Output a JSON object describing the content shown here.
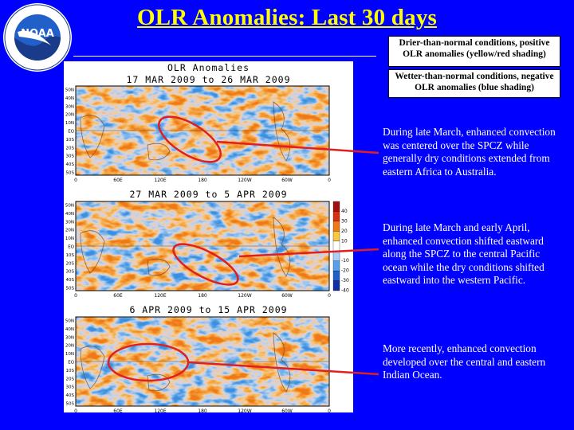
{
  "logo": {
    "emblem_text": "NOAA",
    "ring_text": "NATIONAL OCEANIC AND ATMOSPHERIC ADMINISTRATION · U.S. DEPARTMENT OF COMMERCE"
  },
  "title": "OLR Anomalies: Last 30 days",
  "legend": {
    "dry": "Drier-than-normal conditions, positive OLR anomalies (yellow/red shading)",
    "wet": "Wetter-than-normal conditions, negative OLR anomalies (blue shading)"
  },
  "figure": {
    "header": "OLR Anomalies",
    "panels": [
      {
        "title": "17 MAR 2009 to 26 MAR 2009"
      },
      {
        "title": "27 MAR 2009 to 5 APR 2009"
      },
      {
        "title": "6 APR 2009 to 15 APR 2009"
      }
    ],
    "lat_labels": [
      "50N",
      "40N",
      "30N",
      "20N",
      "10N",
      "EQ",
      "10S",
      "20S",
      "30S",
      "40S",
      "50S"
    ],
    "lon_labels": [
      "0",
      "60E",
      "120E",
      "180",
      "120W",
      "60W",
      "0"
    ],
    "colorbar_labels": [
      "40",
      "30",
      "20",
      "10",
      "-10",
      "-20",
      "-30",
      "-40"
    ]
  },
  "notes": [
    "During late March, enhanced convection was centered over the SPCZ while generally dry conditions extended from eastern Africa to Australia.",
    "During late March and early April, enhanced convection shifted eastward along the SPCZ to the central Pacific ocean while the dry conditions shifted eastward into the western Pacific.",
    "More recently,  enhanced convection developed over the central and eastern Indian Ocean."
  ],
  "colors": {
    "background": "#0000ff",
    "title": "#ffff00",
    "arrows": "#e02020"
  }
}
